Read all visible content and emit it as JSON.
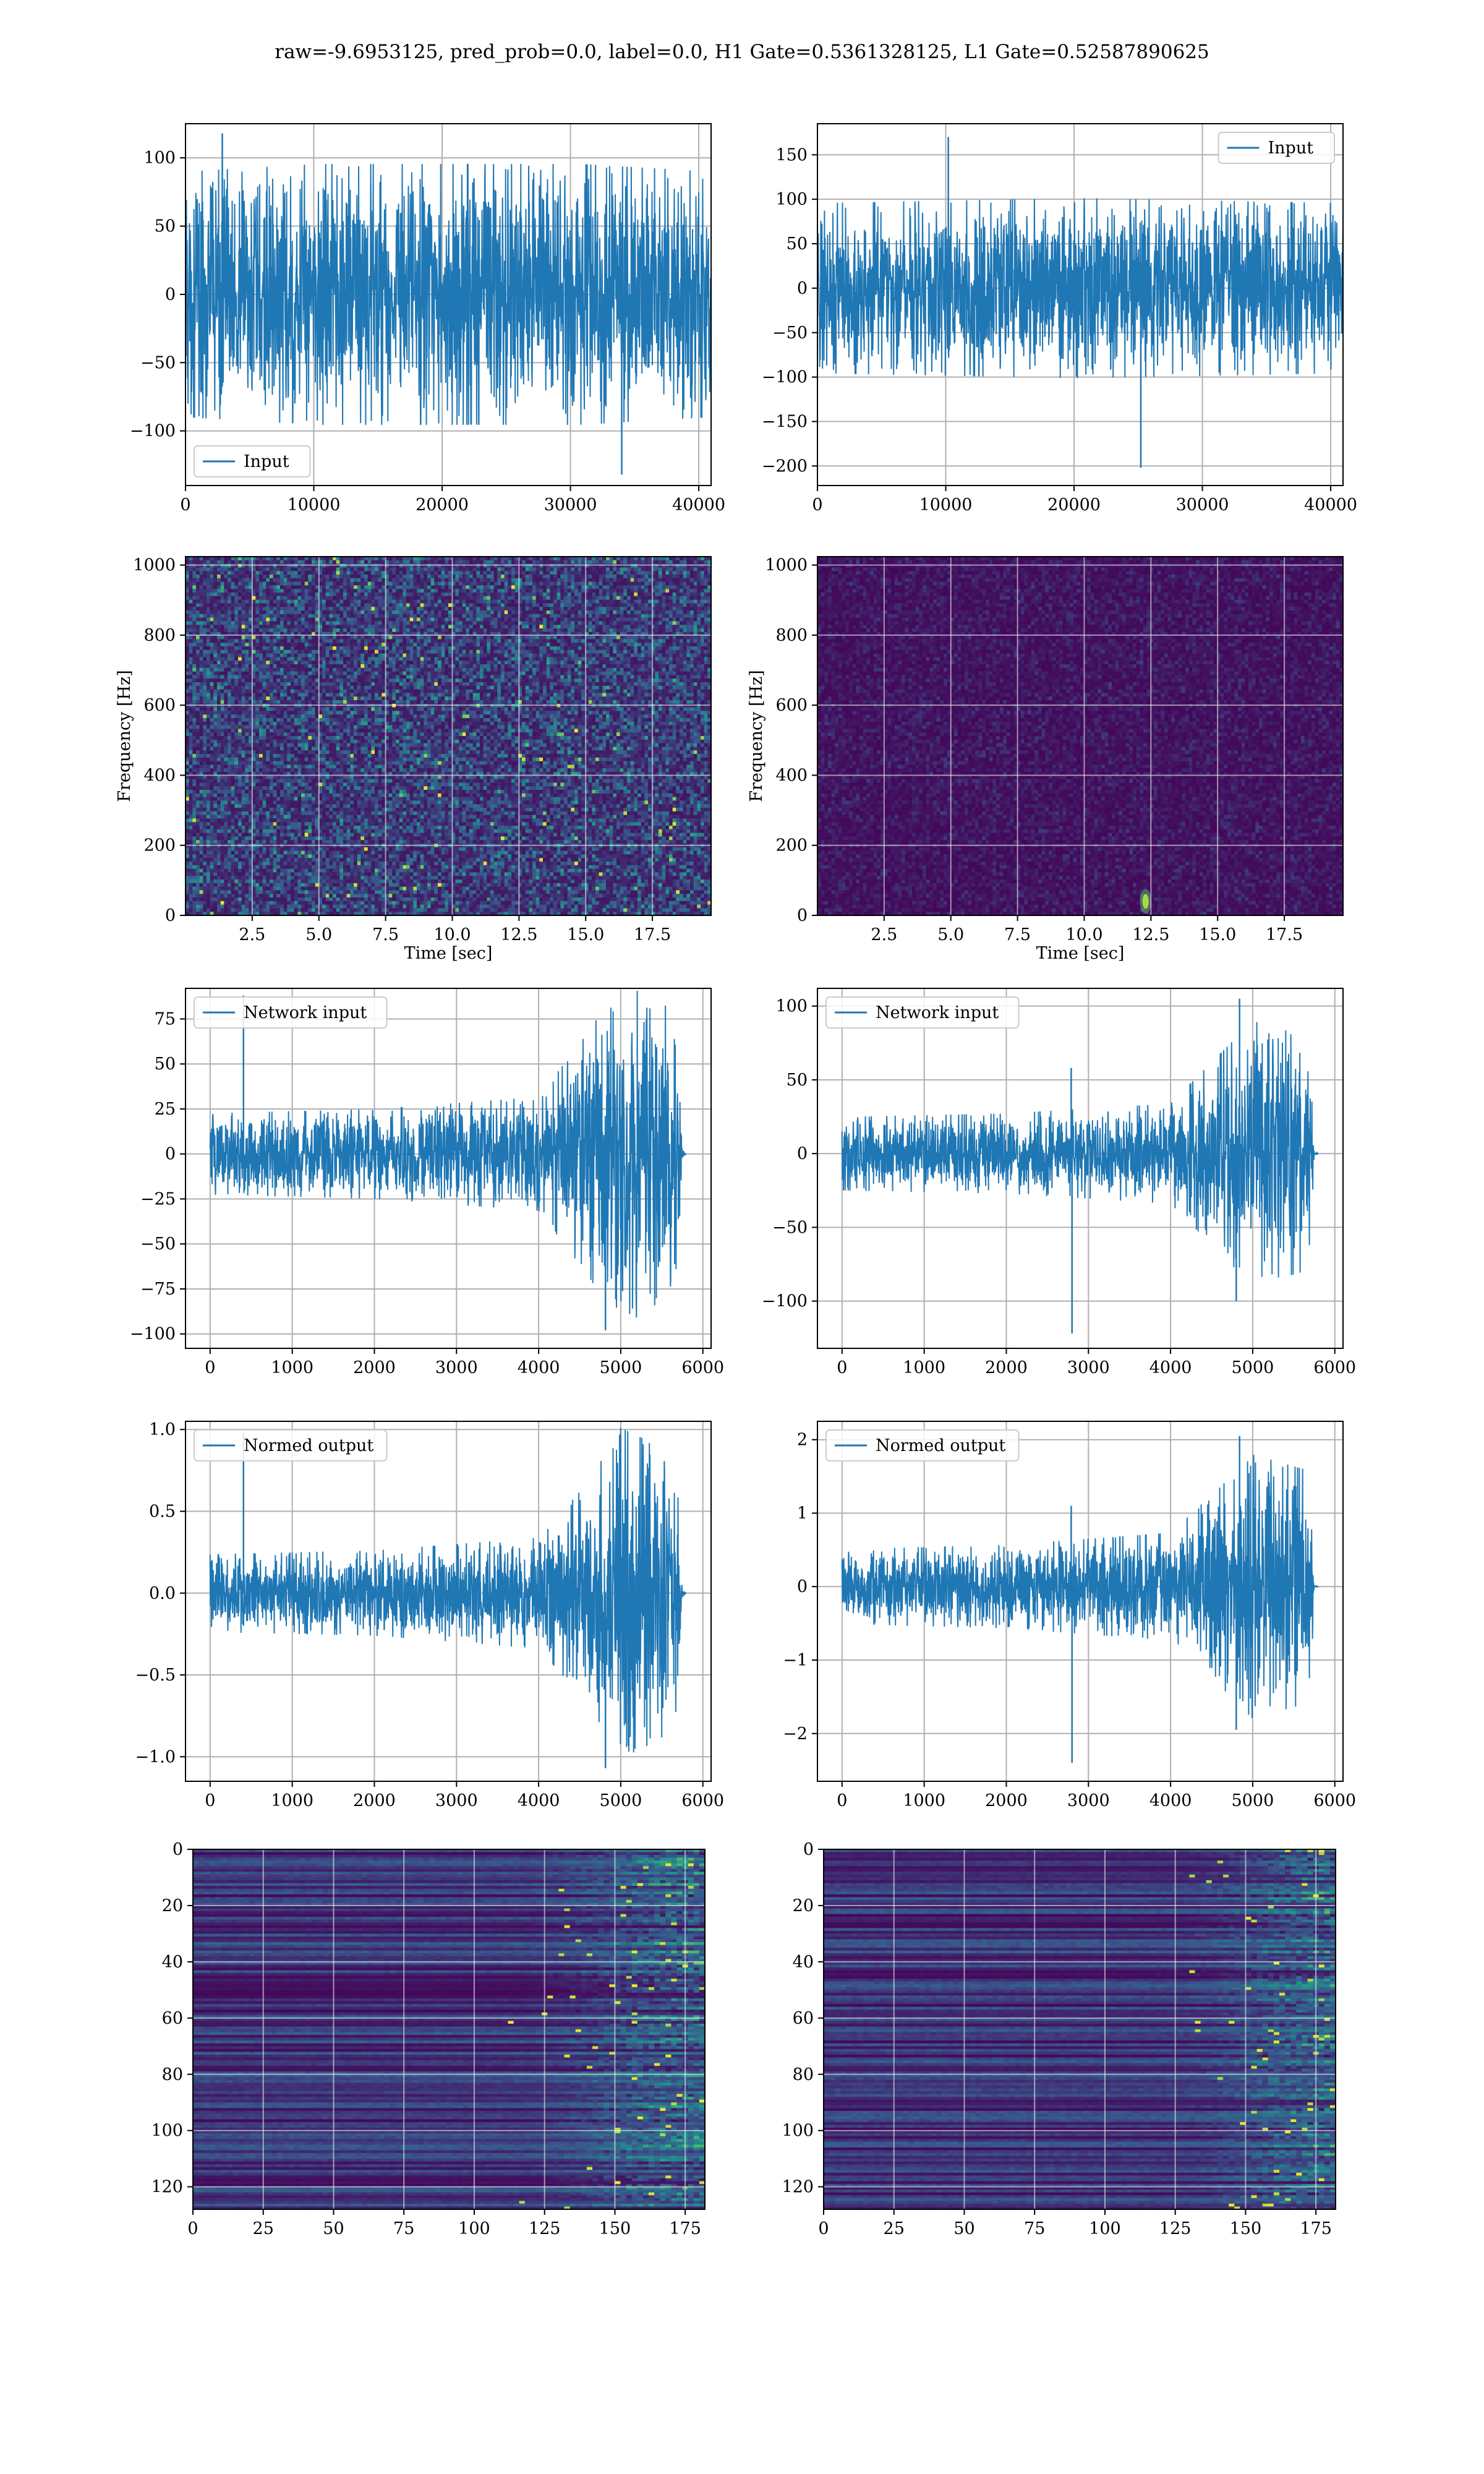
{
  "suptitle": "raw=-9.6953125, pred_prob=0.0, label=0.0, H1 Gate=0.5361328125, L1 Gate=0.52587890625",
  "colors": {
    "line": "#1f77b4",
    "grid": "#b0b0b0",
    "viridis": [
      "#440154",
      "#3b528b",
      "#21918c",
      "#5ec962",
      "#fde725"
    ]
  },
  "chart_data": [
    {
      "id": "h1-input",
      "type": "line",
      "panel": "row1-left",
      "legend": "Input",
      "legend_loc": "lower left",
      "xlim": [
        0,
        40960
      ],
      "ylim": [
        -140,
        125
      ],
      "xticks": [
        0,
        10000,
        20000,
        30000,
        40000
      ],
      "yticks": [
        -100,
        -50,
        0,
        50,
        100
      ],
      "x_range": [
        0,
        40960
      ],
      "envelope": [
        [
          0,
          -80,
          80
        ],
        [
          10240,
          -85,
          85
        ],
        [
          20480,
          -85,
          85
        ],
        [
          30720,
          -85,
          85
        ],
        [
          40960,
          -80,
          80
        ]
      ],
      "extremes": {
        "max": 118,
        "min": -132
      },
      "grid": true
    },
    {
      "id": "l1-input",
      "type": "line",
      "panel": "row1-right",
      "legend": "Input",
      "legend_loc": "upper right",
      "xlim": [
        0,
        40960
      ],
      "ylim": [
        -222,
        185
      ],
      "xticks": [
        0,
        10000,
        20000,
        30000,
        40000
      ],
      "yticks": [
        -200,
        -150,
        -100,
        -50,
        0,
        50,
        100,
        150
      ],
      "x_range": [
        0,
        40960
      ],
      "envelope": [
        [
          0,
          -85,
          85
        ],
        [
          20480,
          -90,
          90
        ],
        [
          40960,
          -85,
          85
        ]
      ],
      "spikes": [
        [
          10200,
          170
        ],
        [
          25200,
          -202
        ]
      ],
      "grid": true
    },
    {
      "id": "h1-spectrogram",
      "type": "heatmap",
      "panel": "row2-left",
      "xlim": [
        0,
        19.7
      ],
      "ylim": [
        0,
        1024
      ],
      "xticks": [
        2.5,
        5.0,
        7.5,
        10.0,
        12.5,
        15.0,
        17.5
      ],
      "yticks": [
        0,
        200,
        400,
        600,
        800,
        1000
      ],
      "xlabel": "Time [sec]",
      "ylabel": "Frequency [Hz]",
      "intensity": "moderate",
      "grid": true
    },
    {
      "id": "l1-spectrogram",
      "type": "heatmap",
      "panel": "row2-right",
      "xlim": [
        0,
        19.7
      ],
      "ylim": [
        0,
        1024
      ],
      "xticks": [
        2.5,
        5.0,
        7.5,
        10.0,
        12.5,
        15.0,
        17.5
      ],
      "yticks": [
        0,
        200,
        400,
        600,
        800,
        1000
      ],
      "xlabel": "Time [sec]",
      "ylabel": "Frequency [Hz]",
      "intensity": "low",
      "hotspot": [
        12.3,
        40
      ],
      "grid": true
    },
    {
      "id": "h1-network-input",
      "type": "line",
      "panel": "row3-left",
      "legend": "Network input",
      "legend_loc": "upper left",
      "xlim": [
        -300,
        6100
      ],
      "ylim": [
        -108,
        92
      ],
      "xticks": [
        0,
        1000,
        2000,
        3000,
        4000,
        5000,
        6000
      ],
      "yticks": [
        -100,
        -75,
        -50,
        -25,
        0,
        25,
        50,
        75
      ],
      "x_range": [
        0,
        5800
      ],
      "envelope": [
        [
          0,
          -20,
          20
        ],
        [
          2000,
          -22,
          22
        ],
        [
          4000,
          -28,
          28
        ],
        [
          4600,
          -60,
          60
        ],
        [
          5000,
          -85,
          85
        ],
        [
          5700,
          -70,
          70
        ],
        [
          5750,
          -2,
          2
        ],
        [
          5800,
          0,
          0
        ]
      ],
      "extremes": {
        "max": 88,
        "min": -98
      },
      "grid": true
    },
    {
      "id": "l1-network-input",
      "type": "line",
      "panel": "row3-right",
      "legend": "Network input",
      "legend_loc": "upper left",
      "xlim": [
        -300,
        6100
      ],
      "ylim": [
        -132,
        112
      ],
      "xticks": [
        0,
        1000,
        2000,
        3000,
        4000,
        5000,
        6000
      ],
      "yticks": [
        -100,
        -50,
        0,
        50,
        100
      ],
      "x_range": [
        0,
        5800
      ],
      "envelope": [
        [
          0,
          -22,
          22
        ],
        [
          2000,
          -24,
          24
        ],
        [
          4000,
          -30,
          30
        ],
        [
          4600,
          -60,
          60
        ],
        [
          5000,
          -80,
          80
        ],
        [
          5700,
          -70,
          70
        ],
        [
          5750,
          -2,
          2
        ],
        [
          5800,
          0,
          0
        ]
      ],
      "spikes": [
        [
          2790,
          58
        ],
        [
          2800,
          -122
        ],
        [
          4840,
          105
        ],
        [
          4800,
          -100
        ]
      ],
      "grid": true
    },
    {
      "id": "h1-normed-output",
      "type": "line",
      "panel": "row4-left",
      "legend": "Normed output",
      "legend_loc": "upper left",
      "xlim": [
        -300,
        6100
      ],
      "ylim": [
        -1.15,
        1.05
      ],
      "xticks": [
        0,
        1000,
        2000,
        3000,
        4000,
        5000,
        6000
      ],
      "yticks": [
        -1.0,
        -0.5,
        0.0,
        0.5,
        1.0
      ],
      "x_range": [
        0,
        5800
      ],
      "envelope": [
        [
          0,
          -0.21,
          0.21
        ],
        [
          2000,
          -0.23,
          0.23
        ],
        [
          4000,
          -0.3,
          0.3
        ],
        [
          4600,
          -0.6,
          0.6
        ],
        [
          5000,
          -0.9,
          0.9
        ],
        [
          5700,
          -0.75,
          0.75
        ],
        [
          5750,
          -0.02,
          0.02
        ],
        [
          5800,
          0,
          0
        ]
      ],
      "extremes": {
        "max": 0.98,
        "min": -1.07
      },
      "grid": true
    },
    {
      "id": "l1-normed-output",
      "type": "line",
      "panel": "row4-right",
      "legend": "Normed output",
      "legend_loc": "upper left",
      "xlim": [
        -300,
        6100
      ],
      "ylim": [
        -2.65,
        2.25
      ],
      "xticks": [
        0,
        1000,
        2000,
        3000,
        4000,
        5000,
        6000
      ],
      "yticks": [
        -2,
        -1,
        0,
        1,
        2
      ],
      "x_range": [
        0,
        5800
      ],
      "envelope": [
        [
          0,
          -0.45,
          0.45
        ],
        [
          2000,
          -0.5,
          0.5
        ],
        [
          4000,
          -0.65,
          0.65
        ],
        [
          4600,
          -1.2,
          1.2
        ],
        [
          5000,
          -1.6,
          1.6
        ],
        [
          5700,
          -1.4,
          1.4
        ],
        [
          5750,
          -0.03,
          0.03
        ],
        [
          5800,
          0,
          0
        ]
      ],
      "spikes": [
        [
          2790,
          1.1
        ],
        [
          2800,
          -2.4
        ],
        [
          4840,
          2.05
        ],
        [
          4800,
          -1.95
        ]
      ],
      "grid": true
    },
    {
      "id": "h1-feature-map",
      "type": "heatmap",
      "panel": "row5-left",
      "xlim": [
        0,
        182
      ],
      "ylim_top_down": [
        0,
        128
      ],
      "xticks": [
        0,
        25,
        50,
        75,
        100,
        125,
        150,
        175
      ],
      "yticks": [
        0,
        20,
        40,
        60,
        80,
        100,
        120
      ],
      "activity_onset_x": 115,
      "grid": true
    },
    {
      "id": "l1-feature-map",
      "type": "heatmap",
      "panel": "row5-right",
      "xlim": [
        0,
        182
      ],
      "ylim_top_down": [
        0,
        128
      ],
      "xticks": [
        0,
        25,
        50,
        75,
        100,
        125,
        150,
        175
      ],
      "yticks": [
        0,
        20,
        40,
        60,
        80,
        100,
        120
      ],
      "activity_onset_x": 120,
      "grid": true
    }
  ]
}
